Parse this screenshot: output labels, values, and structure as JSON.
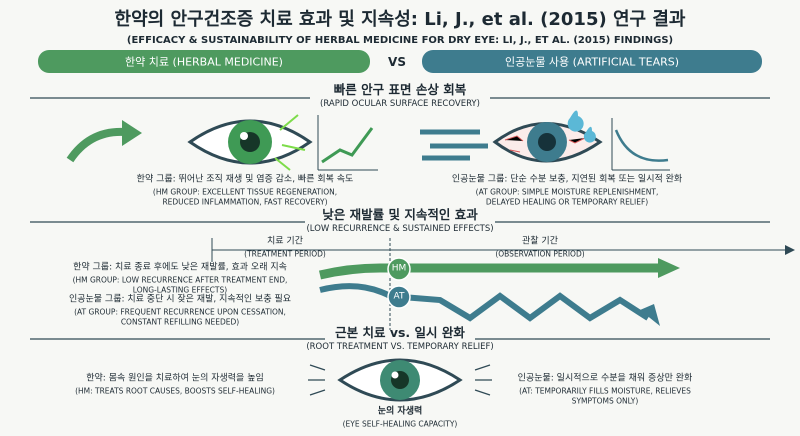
{
  "title": "한약의 안구건조증 치료 효과 및 지속성: Li, J., et al. (2015) 연구 결과",
  "subtitle": "(EFFICACY & SUSTAINABILITY OF HERBAL MEDICINE FOR DRY EYE: LI, J., ET AL. (2015) FINDINGS)",
  "header": {
    "left": "한약 치료 (HERBAL MEDICINE)",
    "vs": "VS",
    "right": "인공눈물 사용 (ARTIFICIAL TEARS)"
  },
  "section1": {
    "heading": "빠른 안구 표면 손상 회복",
    "subheading": "(RAPID OCULAR SURFACE RECOVERY)",
    "left": [
      "한약 그룹: 뛰어난 조직 재생 및 염증 감소, 빠른 회복 속도",
      "(HM GROUP: EXCELLENT TISSUE REGENERATION,",
      "REDUCED INFLAMMATION, FAST RECOVERY)"
    ],
    "right": [
      "인공눈물 그룹: 단순 수분 보충, 지연된 회복 또는 일시적 완화",
      "(AT GROUP: SIMPLE MOISTURE REPLENISHMENT,",
      "DELAYED HEALING OR TEMPORARY RELIEF)"
    ]
  },
  "section2": {
    "heading": "낮은 재발률 및 지속적인 효과",
    "subheading": "(LOW RECURRENCE & SUSTAINED EFFECTS)",
    "treatment_period": [
      "치료 기간",
      "(TREATMENT PERIOD)"
    ],
    "observation_period": [
      "관찰 기간",
      "(OBSERVATION PERIOD)"
    ],
    "hm": [
      "한약 그룹: 치료 종료 후에도 낮은 재발률, 효과 오래 지속",
      "(HM GROUP: LOW RECURRENCE AFTER TREATMENT END,",
      "LONG-LASTING EFFECTS)"
    ],
    "at": [
      "인공눈물 그룹: 치료 중단 시 잦은 재발, 지속적인 보충 필요",
      "(AT GROUP: FREQUENT RECURRENCE UPON CESSATION,",
      "CONSTANT REFILLING NEEDED)"
    ],
    "hm_badge": "HM",
    "at_badge": "AT"
  },
  "section3": {
    "heading": "근본 치료 vs. 일시 완화",
    "subheading": "(ROOT TREATMENT VS. TEMPORARY RELIEF)",
    "left": [
      "한약: 몸속 원인을 치료하여 눈의 자생력을 높임",
      "(HM: TREATS ROOT CAUSES, BOOSTS SELF-HEALING)"
    ],
    "right": [
      "인공눈물: 일시적으로 수분을 채워 증상만 완화",
      "(AT: TEMPORARILY FILLS MOISTURE, RELIEVES",
      "SYMPTOMS ONLY)"
    ],
    "bottom": [
      "눈의 자생력",
      "(EYE SELF-HEALING CAPACITY)"
    ]
  }
}
